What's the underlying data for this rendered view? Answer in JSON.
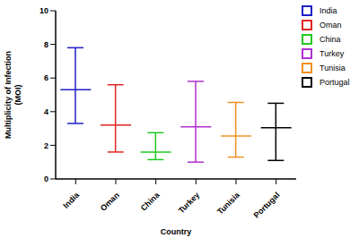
{
  "chart_data": {
    "type": "range",
    "xlabel": "Country",
    "ylabel": "Multiplicity of Infection (MOI)",
    "categories": [
      "India",
      "Oman",
      "China",
      "Turkey",
      "Tunisia",
      "Portugal"
    ],
    "values": [
      5.3,
      3.2,
      1.6,
      3.1,
      2.55,
      3.05
    ],
    "lower": [
      3.3,
      1.6,
      1.15,
      1.0,
      1.3,
      1.1
    ],
    "upper": [
      7.8,
      5.6,
      2.75,
      5.8,
      4.55,
      4.5
    ],
    "colors": [
      "#1f1fc8",
      "#e02424",
      "#22c822",
      "#b030d0",
      "#f09020",
      "#000000"
    ],
    "ylim": [
      0,
      10
    ],
    "yticks": [
      0,
      2,
      4,
      6,
      8,
      10
    ],
    "legend": "upper right",
    "grid": false
  }
}
